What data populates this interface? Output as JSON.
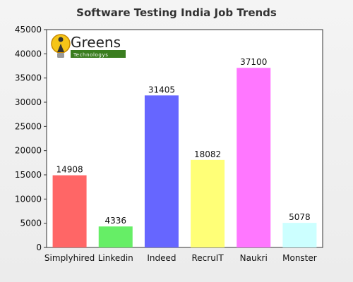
{
  "chart_data": {
    "type": "bar",
    "title": "Software Testing India Job Trends",
    "categories": [
      "Simplyhired",
      "Linkedin",
      "Indeed",
      "RecruIT",
      "Naukri",
      "Monster"
    ],
    "values": [
      14908,
      4336,
      31405,
      18082,
      37100,
      5078
    ],
    "data_labels": [
      "14908",
      "4336",
      "31405",
      "18082",
      "37100",
      "5078"
    ],
    "bar_colors": [
      "#ff6666",
      "#66ee66",
      "#6666ff",
      "#ffff77",
      "#ff77ff",
      "#ccffff"
    ],
    "xlabel": "",
    "ylabel": "",
    "ylim": [
      0,
      45000
    ],
    "yticks": [
      0,
      5000,
      10000,
      15000,
      20000,
      25000,
      30000,
      35000,
      40000,
      45000
    ],
    "ytick_labels": [
      "0",
      "5000",
      "10000",
      "15000",
      "20000",
      "25000",
      "30000",
      "35000",
      "40000",
      "45000"
    ],
    "grid": false,
    "legend": "none"
  },
  "logo": {
    "word": "Greens",
    "subtitle": "Technologys",
    "icon": "bulb-person-icon",
    "accent_color": "#3a7d1f"
  }
}
